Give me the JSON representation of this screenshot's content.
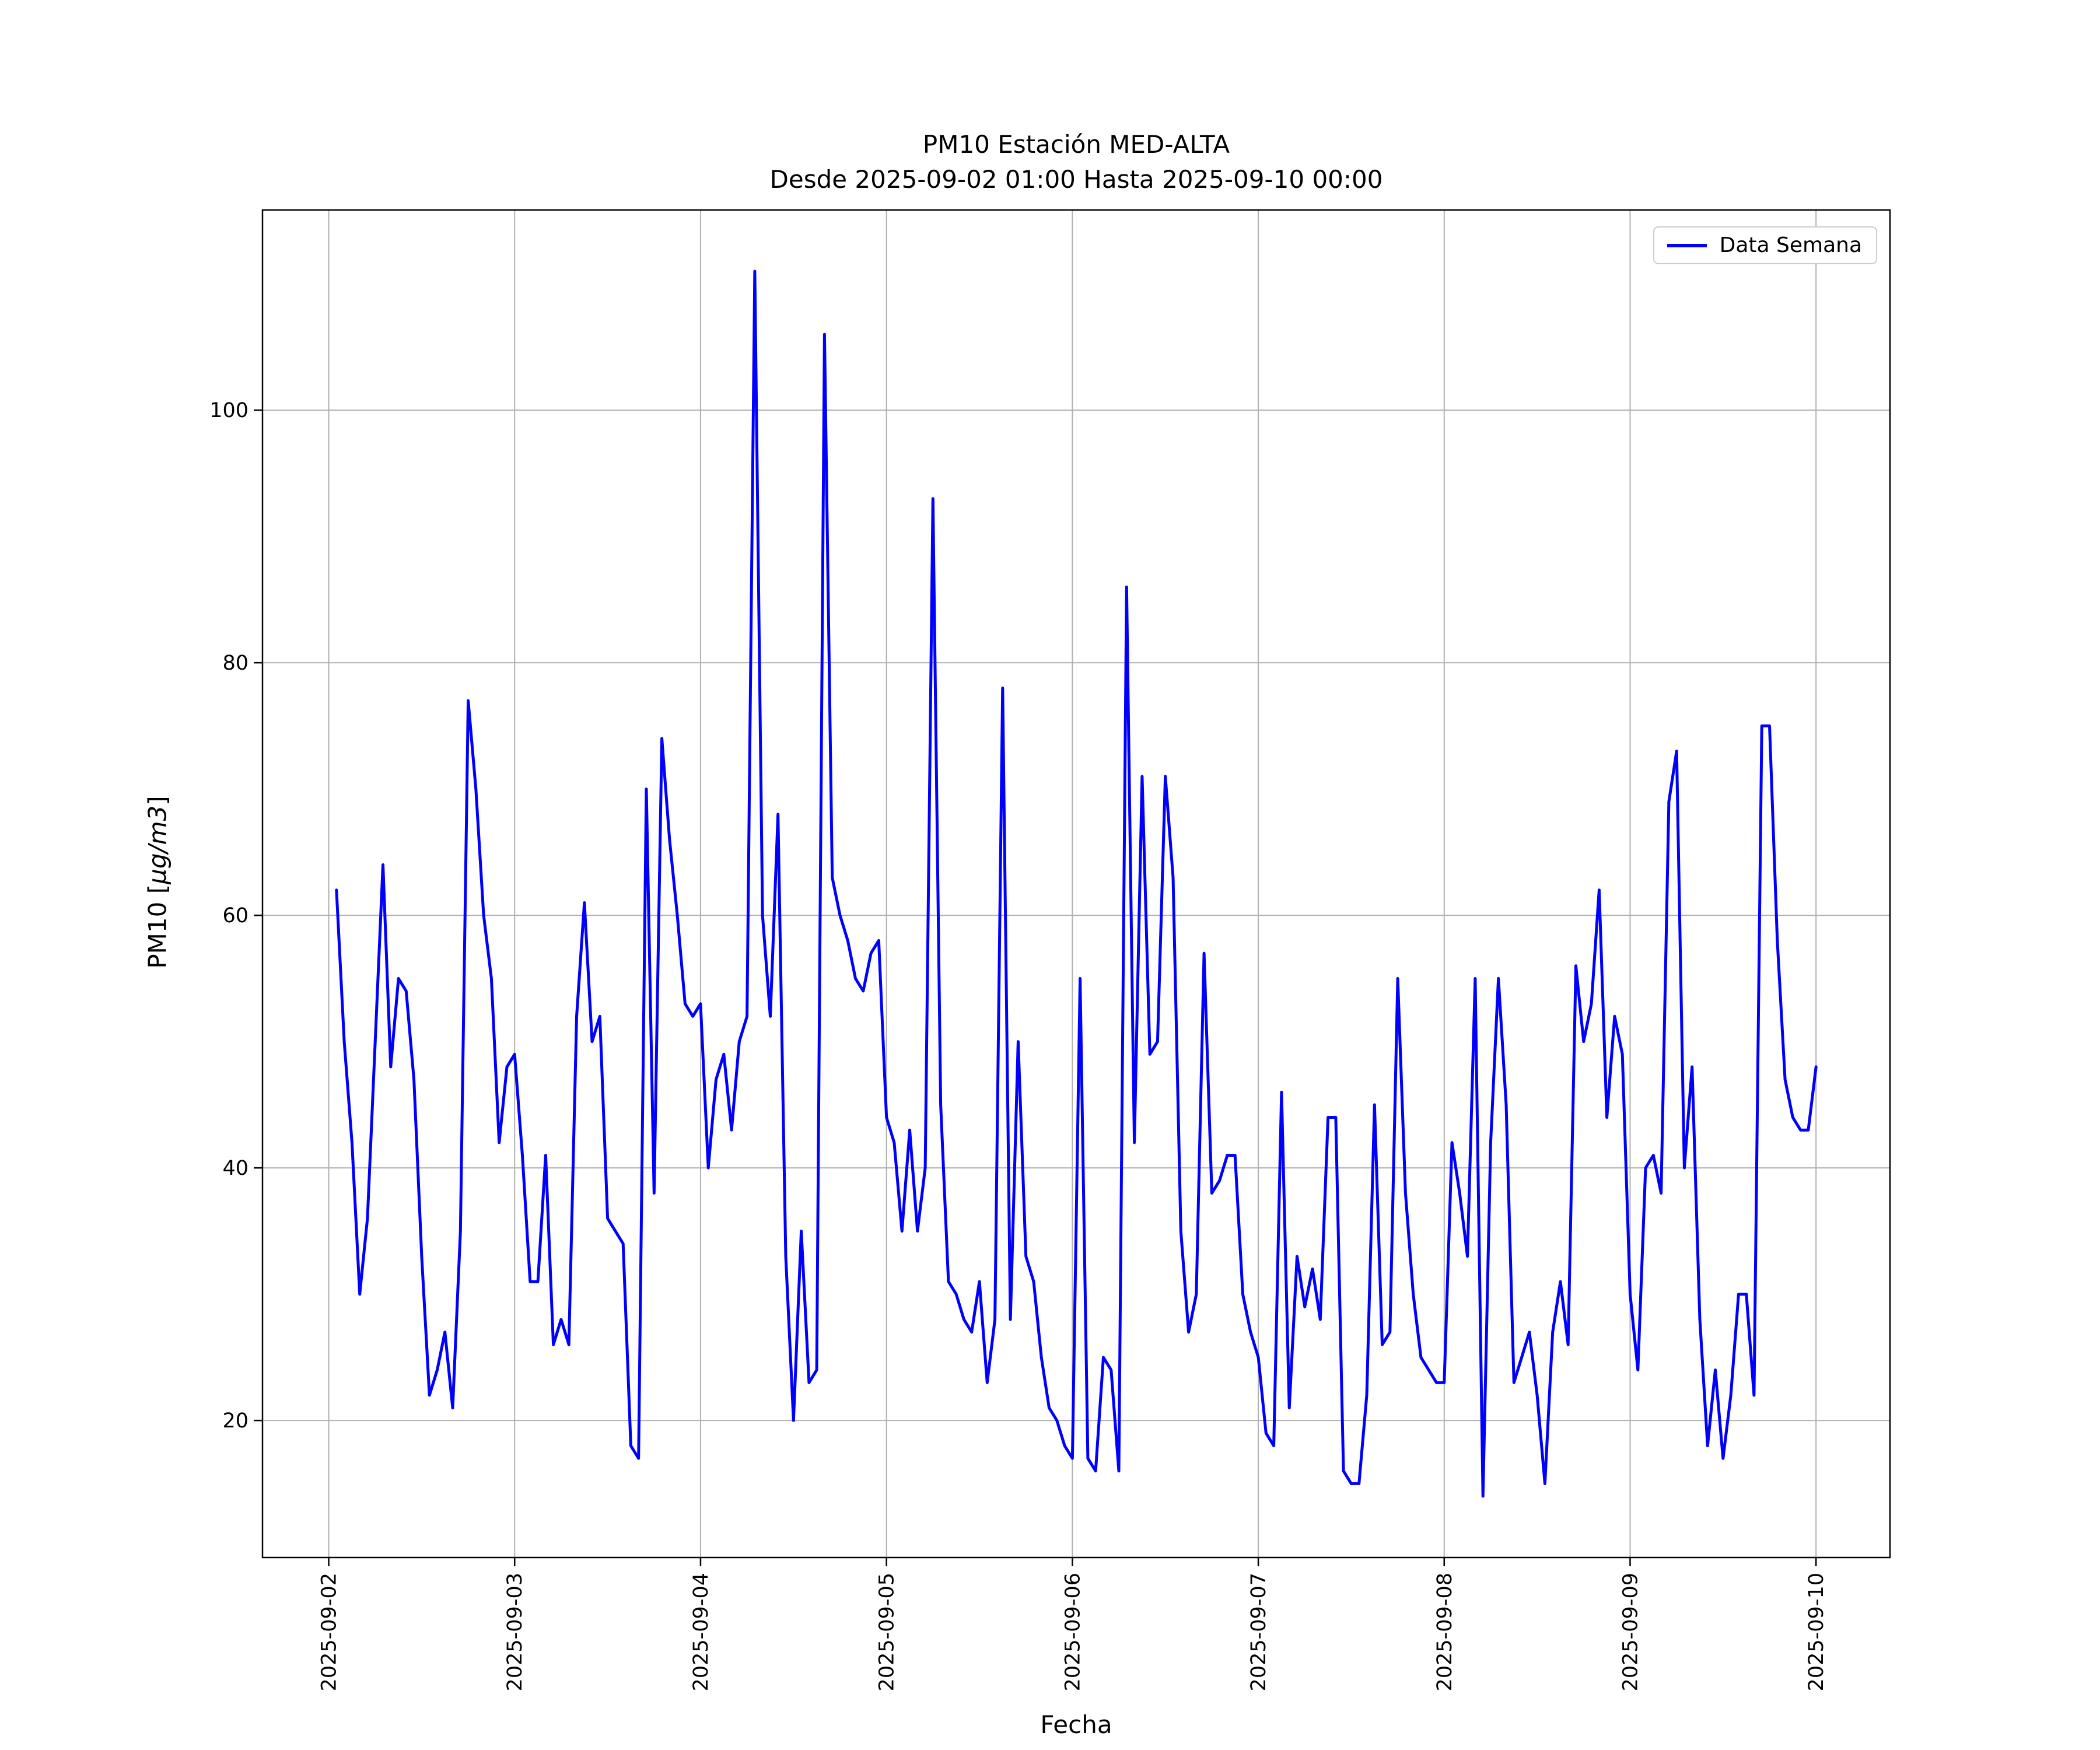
{
  "figure": {
    "background": "#ffffff"
  },
  "chart_data": {
    "type": "line",
    "title": "PM10 Estación MED-ALTA",
    "subtitle": "Desde 2025-09-02 01:00 Hasta 2025-09-10 00:00",
    "xlabel": "Fecha",
    "ylabel": "PM10 [µg/m3]",
    "ylabel_parts": {
      "prefix": "PM10 [",
      "math": "µg/m3",
      "suffix": "]"
    },
    "legend_position": "upper right",
    "grid": true,
    "colors": {
      "line": "#0000ff",
      "grid": "#b0b0b0",
      "axis": "#000000",
      "legend_border": "#cccccc"
    },
    "x_start": "2025-09-02 01:00",
    "x_end": "2025-09-10 00:00",
    "x_interval_hours": 1,
    "x_tick_labels": [
      "2025-09-02",
      "2025-09-03",
      "2025-09-04",
      "2025-09-05",
      "2025-09-06",
      "2025-09-07",
      "2025-09-08",
      "2025-09-09",
      "2025-09-10"
    ],
    "y_ticks": [
      20,
      40,
      60,
      80,
      100
    ],
    "ylim_data": [
      14,
      111
    ],
    "series": [
      {
        "name": "Data Semana",
        "color": "#0000ff",
        "values": [
          62,
          50,
          42,
          30,
          36,
          50,
          64,
          48,
          55,
          54,
          47,
          33,
          22,
          24,
          27,
          21,
          35,
          77,
          70,
          60,
          55,
          42,
          48,
          49,
          41,
          31,
          31,
          41,
          26,
          28,
          26,
          52,
          61,
          50,
          52,
          36,
          35,
          34,
          18,
          17,
          70,
          38,
          74,
          66,
          60,
          53,
          52,
          53,
          40,
          47,
          49,
          43,
          50,
          52,
          111,
          60,
          52,
          68,
          33,
          20,
          35,
          23,
          24,
          106,
          63,
          60,
          58,
          55,
          54,
          57,
          58,
          44,
          42,
          35,
          43,
          35,
          40,
          93,
          45,
          31,
          30,
          28,
          27,
          31,
          23,
          28,
          78,
          28,
          50,
          33,
          31,
          25,
          21,
          20,
          18,
          17,
          55,
          17,
          16,
          25,
          24,
          16,
          86,
          42,
          71,
          49,
          50,
          71,
          63,
          35,
          27,
          30,
          57,
          38,
          39,
          41,
          41,
          30,
          27,
          25,
          19,
          18,
          46,
          21,
          33,
          29,
          32,
          28,
          44,
          44,
          16,
          15,
          15,
          22,
          45,
          26,
          27,
          55,
          38,
          30,
          25,
          24,
          23,
          23,
          42,
          38,
          33,
          55,
          14,
          42,
          55,
          45,
          23,
          25,
          27,
          22,
          15,
          27,
          31,
          26,
          56,
          50,
          53,
          62,
          44,
          52,
          49,
          30,
          24,
          40,
          41,
          38,
          69,
          73,
          40,
          48,
          28,
          18,
          24,
          17,
          22,
          30,
          30,
          22,
          75,
          75,
          58,
          47,
          44,
          43,
          43,
          48
        ]
      }
    ]
  }
}
